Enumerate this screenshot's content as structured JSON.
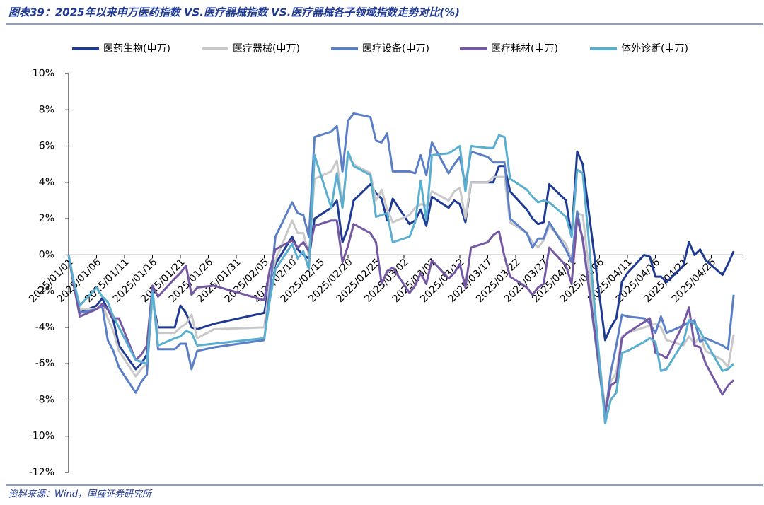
{
  "chart_data": {
    "type": "line",
    "title": "图表39：2025年以来申万医药指数 VS.医疗器械指数 VS.医疗器械各子领域指数走势对比(%)",
    "source": "资料来源：Wind，国盛证券研究所",
    "x": [
      "2025/01/01",
      "2025/01/02",
      "2025/01/03",
      "2025/01/06",
      "2025/01/07",
      "2025/01/08",
      "2025/01/09",
      "2025/01/10",
      "2025/01/13",
      "2025/01/14",
      "2025/01/15",
      "2025/01/16",
      "2025/01/17",
      "2025/01/20",
      "2025/01/21",
      "2025/01/22",
      "2025/01/23",
      "2025/01/24",
      "2025/01/27",
      "2025/02/05",
      "2025/02/06",
      "2025/02/07",
      "2025/02/10",
      "2025/02/11",
      "2025/02/12",
      "2025/02/13",
      "2025/02/14",
      "2025/02/17",
      "2025/02/18",
      "2025/02/19",
      "2025/02/20",
      "2025/02/21",
      "2025/02/24",
      "2025/02/25",
      "2025/02/26",
      "2025/02/27",
      "2025/02/28",
      "2025/03/03",
      "2025/03/04",
      "2025/03/05",
      "2025/03/06",
      "2025/03/07",
      "2025/03/10",
      "2025/03/11",
      "2025/03/12",
      "2025/03/13",
      "2025/03/14",
      "2025/03/17",
      "2025/03/18",
      "2025/03/19",
      "2025/03/20",
      "2025/03/21",
      "2025/03/24",
      "2025/03/25",
      "2025/03/26",
      "2025/03/27",
      "2025/03/28",
      "2025/03/31",
      "2025/04/01",
      "2025/04/02",
      "2025/04/03",
      "2025/04/07",
      "2025/04/08",
      "2025/04/09",
      "2025/04/10",
      "2025/04/11",
      "2025/04/14",
      "2025/04/15",
      "2025/04/16",
      "2025/04/17",
      "2025/04/18",
      "2025/04/21",
      "2025/04/22",
      "2025/04/23",
      "2025/04/24",
      "2025/04/25",
      "2025/04/28",
      "2025/04/29",
      "2025/04/30"
    ],
    "series": [
      {
        "name": "医药生物(申万)",
        "color": "#1f3a93",
        "values": [
          0,
          -1.8,
          -3.2,
          -2.8,
          -2.4,
          -3.0,
          -3.6,
          -5.0,
          -6.3,
          -6.0,
          -5.5,
          -2.5,
          -4.0,
          -4.0,
          -2.8,
          -3.2,
          -4.0,
          -4.1,
          -3.8,
          -3.2,
          -1.5,
          -0.5,
          1.0,
          0.3,
          0.0,
          -0.2,
          2.0,
          2.6,
          3.0,
          0.7,
          1.5,
          3.0,
          3.9,
          3.4,
          3.1,
          1.9,
          3.1,
          1.7,
          1.9,
          2.5,
          1.6,
          3.2,
          2.6,
          3.0,
          2.8,
          1.8,
          4.0,
          4.0,
          4.0,
          4.9,
          4.9,
          3.5,
          2.5,
          2.0,
          1.7,
          1.8,
          3.9,
          3.0,
          1.0,
          5.7,
          5.0,
          -4.7,
          -4.0,
          -3.5,
          -1.5,
          -1.0,
          0.0,
          -0.1,
          -1.2,
          -1.2,
          -1.5,
          -0.6,
          0.7,
          0.0,
          0.3,
          -0.3,
          -1.1,
          -0.5,
          0.2
        ]
      },
      {
        "name": "医疗器械(申万)",
        "color": "#c8c8c8",
        "values": [
          0,
          -1.8,
          -3.0,
          -3.0,
          -2.7,
          -3.5,
          -4.2,
          -5.3,
          -6.7,
          -6.3,
          -6.0,
          -2.5,
          -4.3,
          -4.3,
          -4.0,
          -3.8,
          -3.3,
          -4.6,
          -4.1,
          -4.0,
          -1.5,
          -0.3,
          1.9,
          1.2,
          1.2,
          0.0,
          4.2,
          4.6,
          5.2,
          2.6,
          5.5,
          5.0,
          4.5,
          3.0,
          3.6,
          2.5,
          1.8,
          2.2,
          2.6,
          2.8,
          2.7,
          3.5,
          3.0,
          3.5,
          3.7,
          2.0,
          4.0,
          4.0,
          4.3,
          4.3,
          4.3,
          1.8,
          1.2,
          0.7,
          0.4,
          0.8,
          1.6,
          0.6,
          -0.3,
          2.3,
          2.2,
          -8.5,
          -7.0,
          -6.5,
          -4.5,
          -4.3,
          -4.0,
          -3.9,
          -3.8,
          -4.0,
          -4.7,
          -5.0,
          -4.5,
          -4.9,
          -4.5,
          -5.3,
          -5.8,
          -6.2,
          -4.4
        ]
      },
      {
        "name": "医疗设备(申万)",
        "color": "#5b7fc7",
        "values": [
          0,
          -1.8,
          -3.2,
          -3.0,
          -2.8,
          -4.7,
          -5.3,
          -6.2,
          -7.6,
          -7.0,
          -6.6,
          -1.8,
          -5.2,
          -5.2,
          -4.9,
          -4.9,
          -6.3,
          -5.3,
          -5.1,
          -4.7,
          -2.0,
          1.0,
          2.9,
          2.3,
          2.2,
          1.0,
          6.5,
          6.8,
          7.1,
          4.6,
          7.4,
          7.8,
          7.6,
          6.3,
          6.2,
          6.7,
          4.6,
          4.6,
          4.5,
          5.5,
          4.4,
          6.2,
          4.5,
          5.0,
          5.4,
          3.8,
          5.7,
          5.4,
          5.1,
          5.1,
          5.1,
          2.0,
          1.2,
          0.4,
          0.9,
          0.9,
          1.8,
          0.3,
          -0.4,
          2.4,
          0.8,
          -8.9,
          -6.5,
          -5.0,
          -3.3,
          -3.4,
          -3.5,
          -3.8,
          -4.3,
          -3.4,
          -4.3,
          -3.9,
          -3.7,
          -3.6,
          -4.8,
          -4.6,
          -5.0,
          -5.2,
          -2.2
        ]
      },
      {
        "name": "医疗耗材(申万)",
        "color": "#7558a3",
        "values": [
          0,
          -1.8,
          -3.4,
          -3.0,
          -2.7,
          -3.0,
          -3.5,
          -3.5,
          -5.8,
          -5.5,
          -5.0,
          -1.7,
          -2.3,
          -1.3,
          -1.0,
          -0.6,
          -2.2,
          -1.8,
          -1.7,
          -2.5,
          -0.8,
          0.3,
          0.8,
          0.4,
          0.7,
          0.2,
          1.6,
          1.9,
          1.9,
          -0.4,
          0.5,
          1.7,
          1.2,
          0.7,
          -1.6,
          -0.9,
          -0.7,
          -2.1,
          -1.7,
          -1.0,
          -1.6,
          -0.3,
          -1.3,
          -1.0,
          -0.5,
          -1.8,
          0.4,
          0.7,
          1.1,
          1.3,
          -0.1,
          -1.2,
          -1.8,
          -2.2,
          -1.8,
          -1.6,
          0.4,
          -0.6,
          -1.6,
          2.0,
          0.9,
          -8.7,
          -7.2,
          -7.0,
          -4.6,
          -4.3,
          -3.7,
          -3.5,
          -5.4,
          -5.5,
          -5.7,
          -3.8,
          -2.9,
          -5.0,
          -5.1,
          -6.0,
          -7.7,
          -7.2,
          -6.9
        ]
      },
      {
        "name": "体外诊断(申万)",
        "color": "#5aaed0",
        "values": [
          0,
          -1.6,
          -2.8,
          -1.8,
          -2.3,
          -2.6,
          -3.4,
          -4.0,
          -5.8,
          -5.9,
          -6.0,
          -2.0,
          -5.0,
          -4.6,
          -4.5,
          -4.2,
          -4.3,
          -5.0,
          -4.9,
          -4.6,
          -2.5,
          -0.8,
          0.6,
          -0.2,
          0.2,
          -0.8,
          5.5,
          2.6,
          4.5,
          2.6,
          5.7,
          4.9,
          4.4,
          2.1,
          2.2,
          2.3,
          0.7,
          1.0,
          1.8,
          4.1,
          1.9,
          5.5,
          5.6,
          5.8,
          6.0,
          3.5,
          6.0,
          5.9,
          5.9,
          6.6,
          6.5,
          4.2,
          3.6,
          3.2,
          2.9,
          3.0,
          2.9,
          2.1,
          1.0,
          4.7,
          4.5,
          -9.3,
          -8.0,
          -7.6,
          -5.4,
          -5.3,
          -4.8,
          -4.6,
          -4.8,
          -6.4,
          -6.3,
          -4.8,
          -3.6,
          -3.8,
          -4.2,
          -4.8,
          -6.4,
          -6.3,
          -6.0
        ]
      }
    ],
    "xlim": [
      "2025/01/01",
      "2025/05/01"
    ],
    "xticks": [
      "2025/01/01",
      "2025/01/06",
      "2025/01/11",
      "2025/01/16",
      "2025/01/21",
      "2025/01/26",
      "2025/01/31",
      "2025/02/05",
      "2025/02/10",
      "2025/02/15",
      "2025/02/20",
      "2025/02/25",
      "2025/03/02",
      "2025/03/07",
      "2025/03/12",
      "2025/03/17",
      "2025/03/22",
      "2025/03/27",
      "2025/04/01",
      "2025/04/06",
      "2025/04/11",
      "2025/04/16",
      "2025/04/21",
      "2025/04/26"
    ],
    "ylim": [
      -12,
      10
    ],
    "yticks": [
      {
        "value": -12,
        "label": "-12%"
      },
      {
        "value": -10,
        "label": "-10%"
      },
      {
        "value": -8,
        "label": "-8%"
      },
      {
        "value": -6,
        "label": "-6%"
      },
      {
        "value": -4,
        "label": "-4%"
      },
      {
        "value": -2,
        "label": "-2%"
      },
      {
        "value": 0,
        "label": "0%"
      },
      {
        "value": 2,
        "label": "2%"
      },
      {
        "value": 4,
        "label": "4%"
      },
      {
        "value": 6,
        "label": "6%"
      },
      {
        "value": 8,
        "label": "8%"
      },
      {
        "value": 10,
        "label": "10%"
      }
    ],
    "grid": false,
    "legend": "top"
  }
}
